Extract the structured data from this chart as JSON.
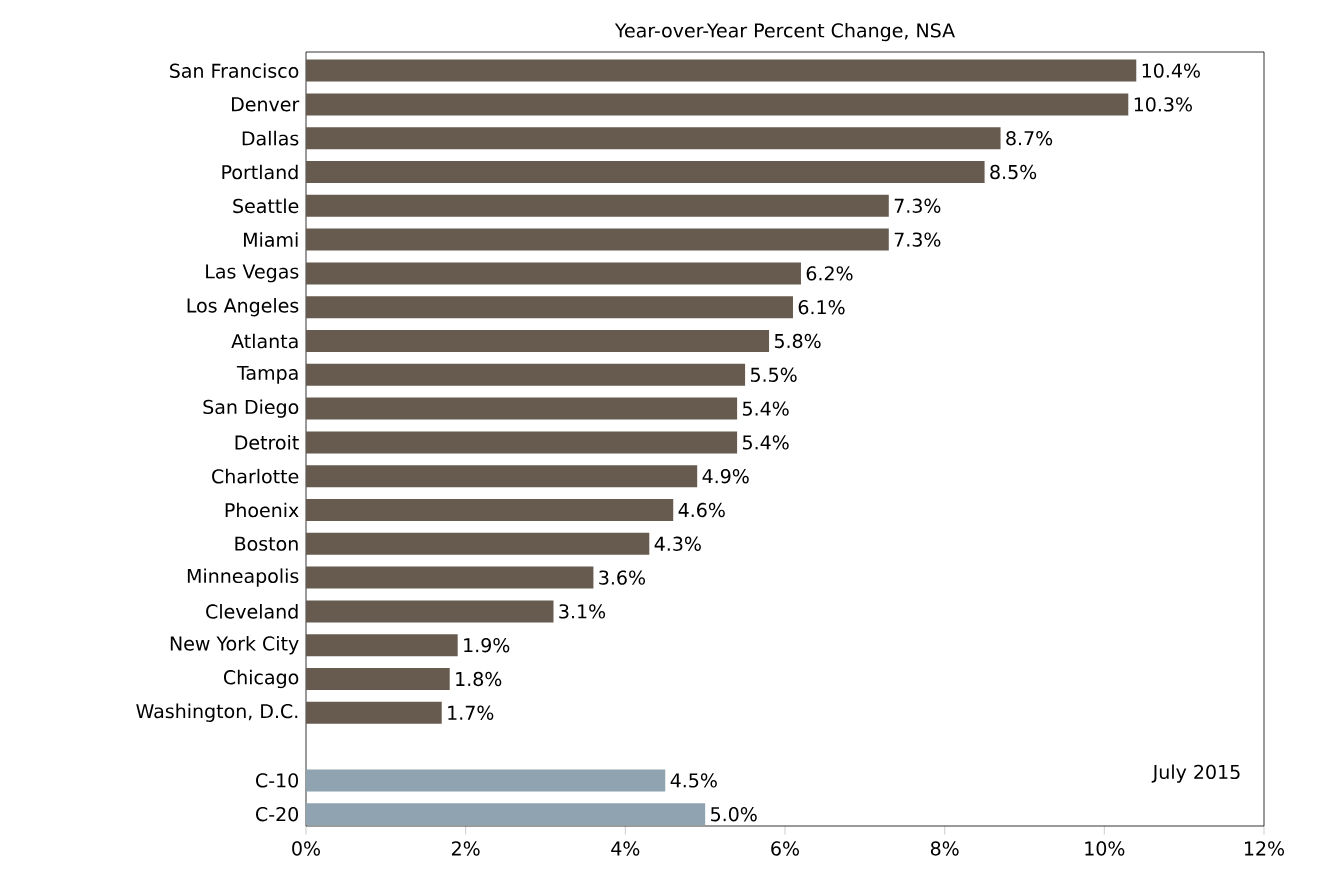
{
  "chart_data": {
    "type": "bar",
    "orientation": "horizontal",
    "title": "Year-over-Year Percent Change, NSA",
    "categories": [
      "San Francisco",
      "Denver",
      "Dallas",
      "Portland",
      "Seattle",
      "Miami",
      "Las Vegas",
      "Los Angeles",
      "Atlanta",
      "Tampa",
      "San Diego",
      "Detroit",
      "Charlotte",
      "Phoenix",
      "Boston",
      "Minneapolis",
      "Cleveland",
      "New York City",
      "Chicago",
      "Washington, D.C.",
      null,
      "C-10",
      "C-20"
    ],
    "values": [
      10.4,
      10.3,
      8.7,
      8.5,
      7.3,
      7.3,
      6.2,
      6.1,
      5.8,
      5.5,
      5.4,
      5.4,
      4.9,
      4.6,
      4.3,
      3.6,
      3.1,
      1.9,
      1.8,
      1.7,
      null,
      4.5,
      5.0
    ],
    "colors": [
      "#675a4f",
      "#675a4f",
      "#675a4f",
      "#675a4f",
      "#675a4f",
      "#675a4f",
      "#675a4f",
      "#675a4f",
      "#675a4f",
      "#675a4f",
      "#675a4f",
      "#675a4f",
      "#675a4f",
      "#675a4f",
      "#675a4f",
      "#675a4f",
      "#675a4f",
      "#675a4f",
      "#675a4f",
      "#675a4f",
      null,
      "#8fa3b1",
      "#8fa3b1"
    ],
    "value_labels": [
      "10.4%",
      "10.3%",
      "8.7%",
      "8.5%",
      "7.3%",
      "7.3%",
      "6.2%",
      "6.1%",
      "5.8%",
      "5.5%",
      "5.4%",
      "5.4%",
      "4.9%",
      "4.6%",
      "4.3%",
      "3.6%",
      "3.1%",
      "1.9%",
      "1.8%",
      "1.7%",
      null,
      "4.5%",
      "5.0%"
    ],
    "xlim": [
      0,
      12
    ],
    "xticks": [
      {
        "value": 0,
        "label": "0%"
      },
      {
        "value": 2,
        "label": "2%"
      },
      {
        "value": 4,
        "label": "4%"
      },
      {
        "value": 6,
        "label": "6%"
      },
      {
        "value": 8,
        "label": "8%"
      },
      {
        "value": 10,
        "label": "10%"
      },
      {
        "value": 12,
        "label": "12%"
      }
    ],
    "annotations": [
      "July 2015"
    ]
  }
}
